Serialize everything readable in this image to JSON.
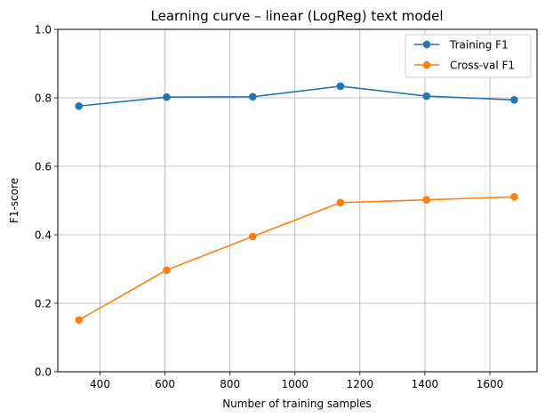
{
  "chart_data": {
    "type": "line",
    "title": "Learning curve – linear (LogReg) text model",
    "xlabel": "Number of training samples",
    "ylabel": "F1-score",
    "xlim": [
      270,
      1745
    ],
    "ylim": [
      0,
      1
    ],
    "x_ticks": [
      400,
      600,
      800,
      1000,
      1200,
      1400,
      1600
    ],
    "y_ticks": [
      0.0,
      0.2,
      0.4,
      0.6,
      0.8,
      1.0
    ],
    "x_tick_labels": [
      "400",
      "600",
      "800",
      "1000",
      "1200",
      "1400",
      "1600"
    ],
    "y_tick_labels": [
      "0.0",
      "0.2",
      "0.4",
      "0.6",
      "0.8",
      "1.0"
    ],
    "grid": true,
    "legend_position": "top-right",
    "x": [
      335,
      605,
      870,
      1140,
      1405,
      1675
    ],
    "series": [
      {
        "name": "Training F1",
        "color": "#1f77b4",
        "values": [
          0.776,
          0.802,
          0.803,
          0.834,
          0.805,
          0.794
        ]
      },
      {
        "name": "Cross-val F1",
        "color": "#ff7f0e",
        "values": [
          0.151,
          0.297,
          0.395,
          0.494,
          0.502,
          0.511
        ]
      }
    ]
  }
}
